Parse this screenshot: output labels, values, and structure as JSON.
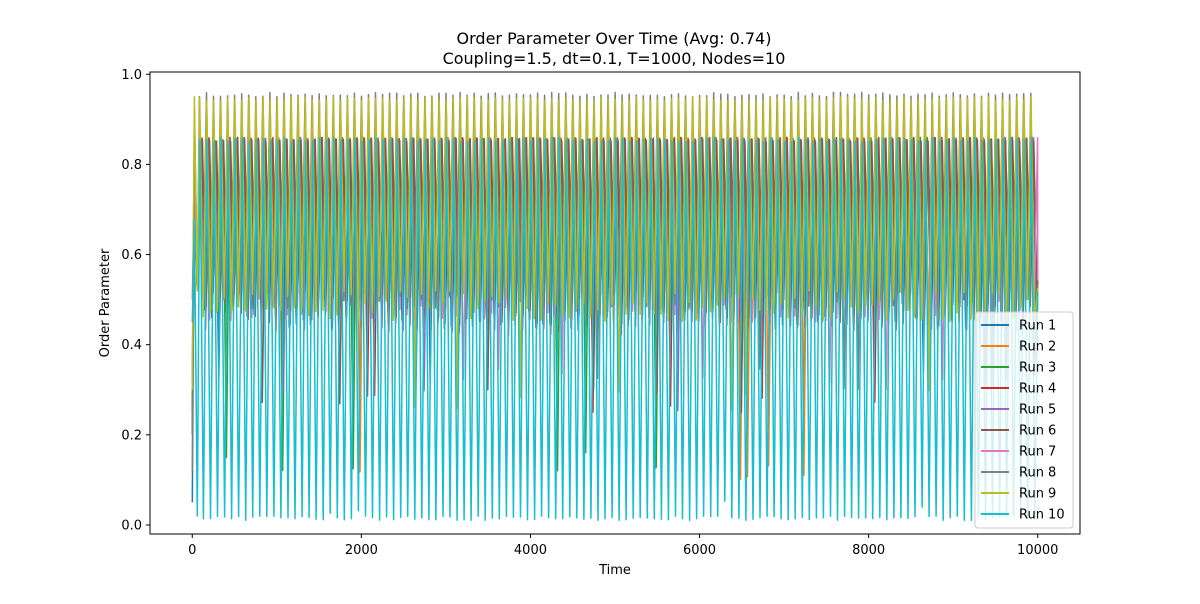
{
  "chart_data": {
    "type": "line",
    "title_line1": "Order Parameter Over Time (Avg: 0.74)",
    "title_line2": "Coupling=1.5, dt=0.1, T=1000, Nodes=10",
    "xlabel": "Time",
    "ylabel": "Order Parameter",
    "xlim": [
      -500,
      10500
    ],
    "ylim": [
      -0.02,
      1.005
    ],
    "xticks": [
      0,
      2000,
      4000,
      6000,
      8000,
      10000
    ],
    "xtick_labels": [
      "0",
      "2000",
      "4000",
      "6000",
      "8000",
      "10000"
    ],
    "yticks": [
      0.0,
      0.2,
      0.4,
      0.6,
      0.8,
      1.0
    ],
    "ytick_labels": [
      "0.0",
      "0.2",
      "0.4",
      "0.6",
      "0.8",
      "1.0"
    ],
    "grid": false,
    "legend_position": "lower right",
    "cycle_count": 120,
    "x_range": [
      0,
      10000
    ],
    "series": [
      {
        "name": "Run 1",
        "color": "#1f77b4",
        "start": 0.05,
        "first_peak": 0.76,
        "high": 0.86,
        "low_min": 0.43,
        "low_max": 0.52,
        "rare_low": 0.3
      },
      {
        "name": "Run 2",
        "color": "#ff7f0e",
        "start": 0.5,
        "first_peak": 0.77,
        "high": 0.86,
        "low_min": 0.44,
        "low_max": 0.52,
        "rare_low": 0.09
      },
      {
        "name": "Run 3",
        "color": "#2ca02c",
        "start": 0.21,
        "first_peak": 0.88,
        "high": 0.86,
        "low_min": 0.45,
        "low_max": 0.52,
        "rare_low": 0.12
      },
      {
        "name": "Run 4",
        "color": "#d62728",
        "start": 0.25,
        "first_peak": 0.85,
        "high": 0.86,
        "low_min": 0.42,
        "low_max": 0.52,
        "rare_low": 0.25
      },
      {
        "name": "Run 5",
        "color": "#9467bd",
        "start": 0.33,
        "first_peak": 0.92,
        "high": 0.86,
        "low_min": 0.43,
        "low_max": 0.52,
        "rare_low": 0.25
      },
      {
        "name": "Run 6",
        "color": "#8c564b",
        "start": 0.2,
        "first_peak": 0.85,
        "high": 0.86,
        "low_min": 0.44,
        "low_max": 0.52,
        "rare_low": 0.25
      },
      {
        "name": "Run 7",
        "color": "#e377c2",
        "start": 0.3,
        "first_peak": 0.84,
        "high": 0.86,
        "low_min": 0.45,
        "low_max": 0.52,
        "rare_low": 0.3
      },
      {
        "name": "Run 8",
        "color": "#7f7f7f",
        "start": 0.12,
        "first_peak": 0.9,
        "high": 0.96,
        "low_min": 0.48,
        "low_max": 0.52,
        "rare_low": 0.3
      },
      {
        "name": "Run 9",
        "color": "#bcbd22",
        "start": 0.3,
        "first_peak": 0.95,
        "high": 0.95,
        "low_min": 0.45,
        "low_max": 0.52,
        "rare_low": 0.25
      },
      {
        "name": "Run 10",
        "color": "#17becf",
        "start": 0.45,
        "first_peak": 0.68,
        "high": 0.86,
        "low_min": 0.01,
        "low_max": 0.02,
        "rare_low": 0.01
      }
    ]
  }
}
